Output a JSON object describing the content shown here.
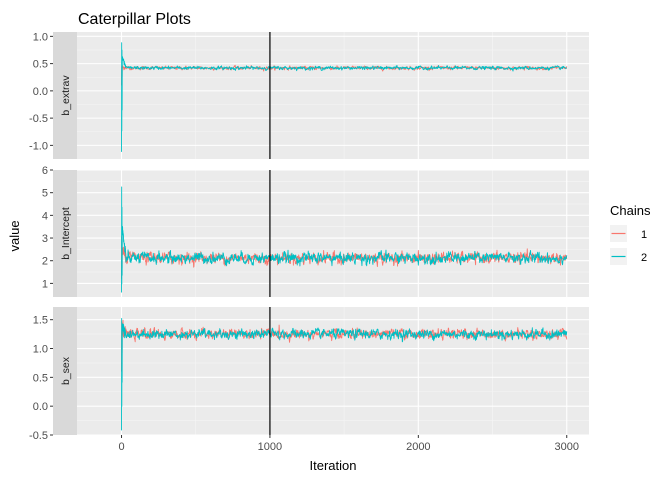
{
  "chart_data": {
    "type": "line",
    "title": "Caterpillar Plots",
    "xlabel": "Iteration",
    "ylabel": "value",
    "x_ticks": [
      0,
      1000,
      2000,
      3000
    ],
    "xlim": [
      -300,
      3150
    ],
    "vline_x": 1000,
    "grid": true,
    "legend": {
      "title": "Chains",
      "position": "right",
      "entries": [
        {
          "label": "1",
          "color": "#F8766D"
        },
        {
          "label": "2",
          "color": "#00BFC4"
        }
      ]
    },
    "iterations": 3000,
    "panels": [
      {
        "strip": "b_extrav",
        "ylim": [
          -1.25,
          1.08
        ],
        "y_ticks": [
          -1.0,
          -0.5,
          0.0,
          0.5,
          1.0
        ],
        "y_tick_labels": [
          "-1.0",
          "-0.5",
          "0.0",
          "0.5",
          "1.0"
        ],
        "series": [
          {
            "name": "1",
            "color": "#F8766D",
            "mean": 0.42,
            "sd": 0.015,
            "init_low": 0.1,
            "init_high": 0.45
          },
          {
            "name": "2",
            "color": "#00BFC4",
            "mean": 0.42,
            "sd": 0.015,
            "init_low": -1.12,
            "init_high": 0.95
          }
        ]
      },
      {
        "strip": "b_Intercept",
        "ylim": [
          0.4,
          6.0
        ],
        "y_ticks": [
          1,
          2,
          3,
          4,
          5,
          6
        ],
        "y_tick_labels": [
          "1",
          "2",
          "3",
          "4",
          "5",
          "6"
        ],
        "series": [
          {
            "name": "1",
            "color": "#F8766D",
            "mean": 2.12,
            "sd": 0.12,
            "init_low": 1.2,
            "init_high": 3.2
          },
          {
            "name": "2",
            "color": "#00BFC4",
            "mean": 2.12,
            "sd": 0.12,
            "init_low": 0.6,
            "init_high": 5.7
          }
        ]
      },
      {
        "strip": "b_sex",
        "ylim": [
          -0.5,
          1.72
        ],
        "y_ticks": [
          -0.5,
          0.0,
          0.5,
          1.0,
          1.5
        ],
        "y_tick_labels": [
          "-0.5",
          "0.0",
          "0.5",
          "1.0",
          "1.5"
        ],
        "series": [
          {
            "name": "1",
            "color": "#F8766D",
            "mean": 1.25,
            "sd": 0.04,
            "init_low": 0.6,
            "init_high": 1.5
          },
          {
            "name": "2",
            "color": "#00BFC4",
            "mean": 1.25,
            "sd": 0.04,
            "init_low": -0.42,
            "init_high": 1.56
          }
        ]
      }
    ]
  }
}
